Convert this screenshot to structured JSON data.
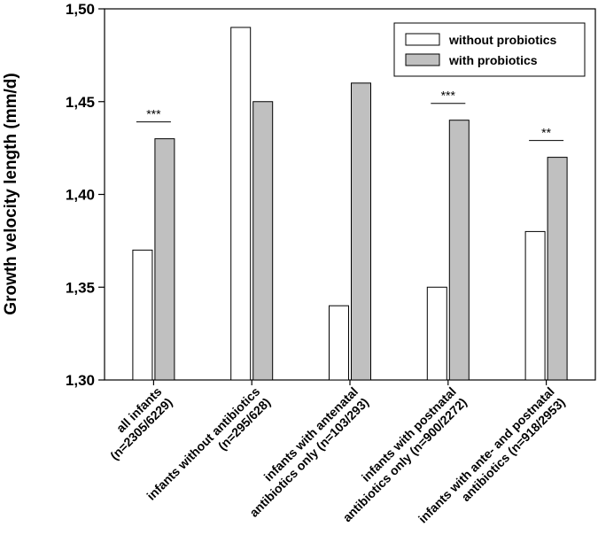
{
  "chart_data": {
    "type": "bar",
    "ylabel": "Growth velocity length (mm/d)",
    "xlabel": "",
    "ylim": [
      1.3,
      1.5
    ],
    "yticks": [
      1.3,
      1.35,
      1.4,
      1.45,
      1.5
    ],
    "ytick_labels": [
      "1,30",
      "1,35",
      "1,40",
      "1,45",
      "1,50"
    ],
    "categories": [
      [
        "all infants",
        "(n=2305/6229)"
      ],
      [
        "infants without antibiotics",
        "(n=295/628)"
      ],
      [
        "infants with antenatal",
        "antibiotics only (n=103/293)"
      ],
      [
        "infants with postnatal",
        "antibiotics only (n=900/2272)"
      ],
      [
        "infants with ante- and postnatal",
        "antibiotics (n=918/2953)"
      ]
    ],
    "series": [
      {
        "name": "without probiotics",
        "color": "#ffffff",
        "values": [
          1.37,
          1.49,
          1.34,
          1.35,
          1.38
        ]
      },
      {
        "name": "with probiotics",
        "color": "#c0c0c0",
        "values": [
          1.43,
          1.45,
          1.46,
          1.44,
          1.42
        ]
      }
    ],
    "significance": [
      "***",
      "",
      "",
      "***",
      "**"
    ],
    "legend_position": "top-right",
    "grid": false
  }
}
